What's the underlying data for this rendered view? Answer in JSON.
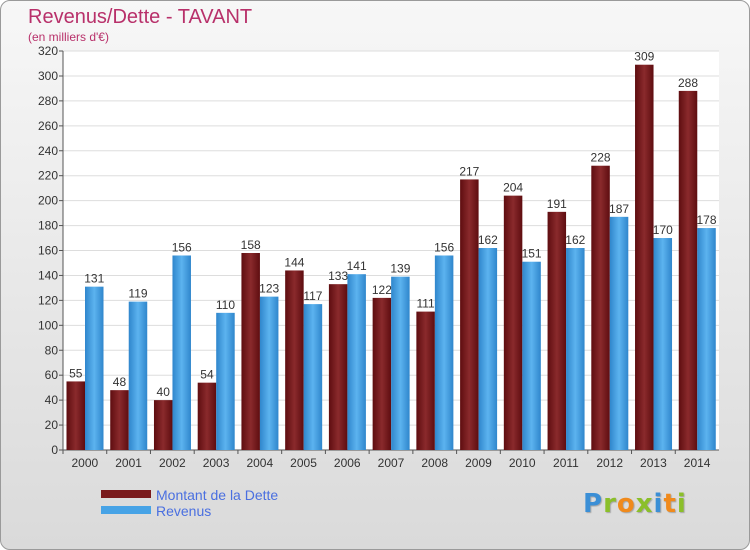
{
  "title": "Revenus/Dette - TAVANT",
  "subtitle": "(en milliers d'€)",
  "colors": {
    "title": "#b8306a",
    "dette": "#7a1a1c",
    "revenus": "#47a3e6",
    "grid": "#dddddd",
    "axis": "#555555",
    "legend_text": "#4a6fe0"
  },
  "chart_data": {
    "type": "bar",
    "title": "Revenus/Dette - TAVANT",
    "ylabel": "(en milliers d'€)",
    "xlabel": "",
    "ylim": [
      0,
      320
    ],
    "yticks": [
      0,
      20,
      40,
      60,
      80,
      100,
      120,
      140,
      160,
      180,
      200,
      220,
      240,
      260,
      280,
      300,
      320
    ],
    "grid": true,
    "legend_position": "bottom-left",
    "categories": [
      "2000",
      "2001",
      "2002",
      "2003",
      "2004",
      "2005",
      "2006",
      "2007",
      "2008",
      "2009",
      "2010",
      "2011",
      "2012",
      "2013",
      "2014"
    ],
    "series": [
      {
        "name": "Montant de la Dette",
        "values": [
          55,
          48,
          40,
          54,
          158,
          144,
          133,
          122,
          111,
          217,
          204,
          191,
          228,
          309,
          288
        ]
      },
      {
        "name": "Revenus",
        "values": [
          131,
          119,
          156,
          110,
          123,
          117,
          141,
          139,
          156,
          162,
          151,
          162,
          187,
          170,
          178
        ]
      }
    ]
  },
  "legend": {
    "items": [
      {
        "label": "Montant de la Dette",
        "color": "#7a1a1c"
      },
      {
        "label": "Revenus",
        "color": "#47a3e6"
      }
    ]
  },
  "logo": {
    "letters": [
      "P",
      "r",
      "o",
      "x",
      "i",
      "t",
      "i"
    ],
    "colors": [
      "#3b8fd6",
      "#8bbf2a",
      "#f08a1c",
      "#8bbf2a",
      "#3b8fd6",
      "#f08a1c",
      "#8bbf2a"
    ]
  }
}
